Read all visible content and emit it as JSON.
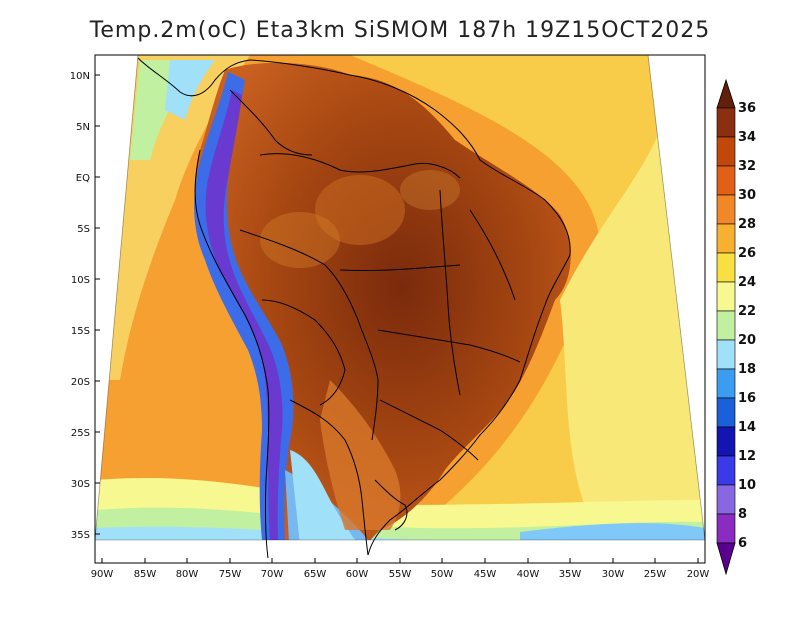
{
  "title": "Temp.2m(oC) Eta3km SiSMOM 187h 19Z15OCT2025",
  "lat_labels": [
    "10N",
    "5N",
    "EQ",
    "5S",
    "10S",
    "15S",
    "20S",
    "25S",
    "30S",
    "35S"
  ],
  "lon_labels": [
    "90W",
    "85W",
    "80W",
    "75W",
    "70W",
    "65W",
    "60W",
    "55W",
    "50W",
    "45W",
    "40W",
    "35W",
    "30W",
    "25W",
    "20W"
  ],
  "colorbar": {
    "labels": [
      "6",
      "8",
      "10",
      "12",
      "14",
      "16",
      "18",
      "20",
      "22",
      "24",
      "26",
      "28",
      "30",
      "32",
      "34",
      "36"
    ],
    "colors": [
      "#5a0090",
      "#8a2cc0",
      "#8868e0",
      "#3a3ae8",
      "#1414b0",
      "#1a60d8",
      "#3c9cf0",
      "#a0e0f8",
      "#c0f0a0",
      "#f8f890",
      "#f8e040",
      "#f8b030",
      "#f08828",
      "#e06018",
      "#c04808",
      "#8a3010",
      "#60200a"
    ]
  }
}
